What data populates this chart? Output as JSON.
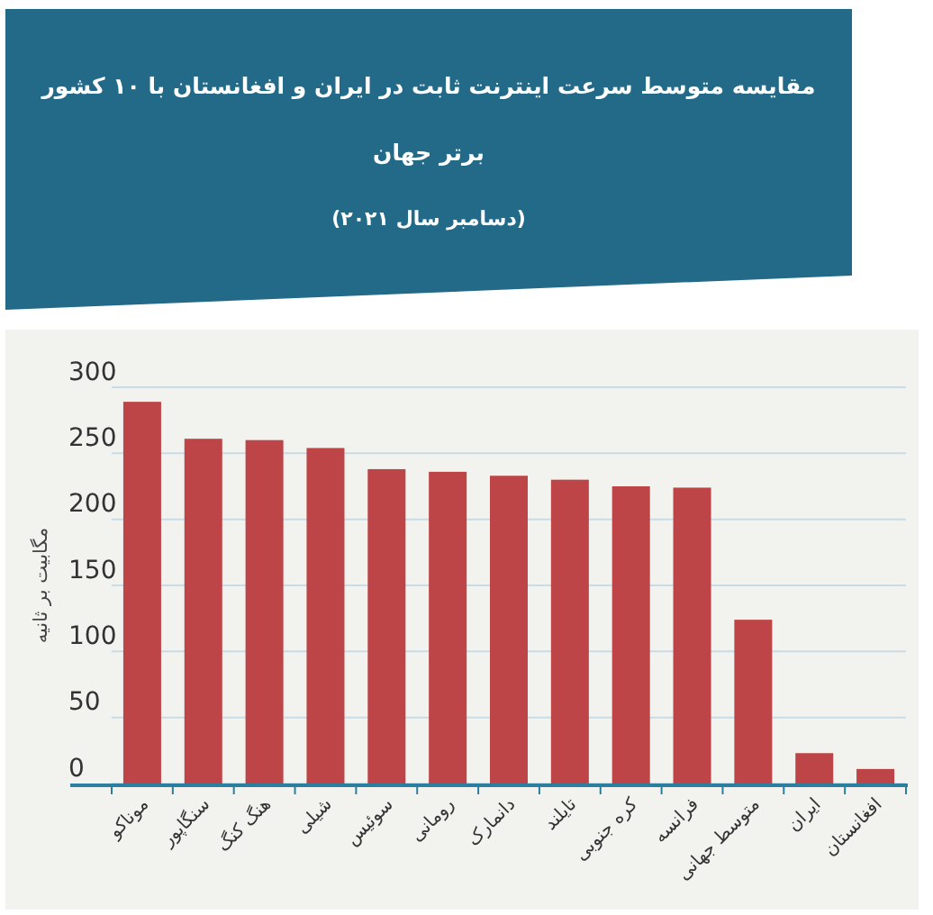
{
  "chart_data": {
    "type": "bar",
    "title": "مقایسه متوسط سرعت اینترنت ثابت در ایران و افغانستان با ۱۰ کشور برتر جهان",
    "subtitle": "(دسامبر سال ۲۰۲۱)",
    "ylabel": "مگابیت بر ثانیه",
    "categories": [
      "موناکو",
      "سنگاپور",
      "هنگ کنگ",
      "شیلی",
      "سوئیس",
      "رومانی",
      "دانمارک",
      "تایلند",
      "کره جنوبی",
      "فرانسه",
      "متوسط جهانی",
      "ایران",
      "افغانستان"
    ],
    "values": [
      289,
      261,
      260,
      254,
      238,
      236,
      233,
      230,
      225,
      224,
      124,
      23,
      11
    ],
    "color": "#bd4547",
    "ylim": [
      0,
      300
    ],
    "yticks": [
      0,
      50,
      100,
      150,
      200,
      250,
      300
    ],
    "grid": "y"
  }
}
